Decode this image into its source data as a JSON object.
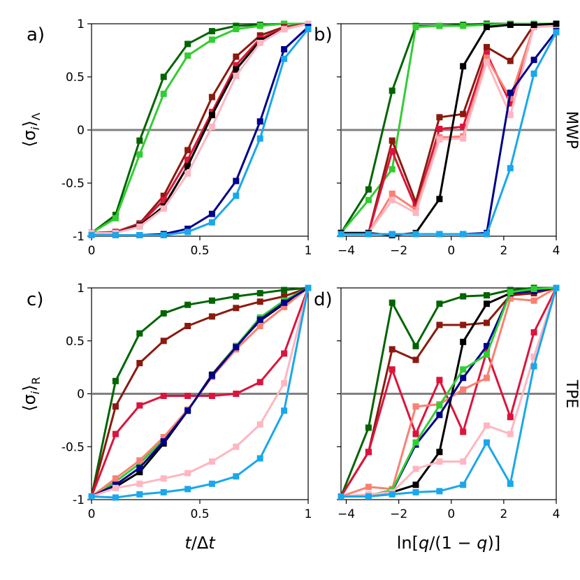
{
  "colors": {
    "dark_green": "#006400",
    "light_green": "#32cd32",
    "dark_red": "#8b1a0e",
    "crimson": "#dc143c",
    "salmon": "#fa8072",
    "pink": "#ffb6c1",
    "black": "#000000",
    "navy": "#00008b",
    "sky_blue": "#1aa7ec",
    "zero_line": "#808080"
  },
  "labels": {
    "panel_a": "a)",
    "panel_b": "b)",
    "panel_c": "c)",
    "panel_d": "d)",
    "ylabel_top": "⟨σᵢ⟩_Λ",
    "ylabel_top_main": "⟨σ",
    "ylabel_top_sub_i": "i",
    "ylabel_top_close": "⟩",
    "ylabel_top_sub": "Λ",
    "ylabel_bottom": "⟨σᵢ⟩_R",
    "ylabel_bottom_main": "⟨σ",
    "ylabel_bottom_sub_i": "i",
    "ylabel_bottom_close": "⟩",
    "ylabel_bottom_sub": "R",
    "xlabel_left": "t/Δt",
    "xlabel_left_t": "t",
    "xlabel_left_rest": "/Δ",
    "xlabel_left_t2": "t",
    "xlabel_right": "ln[q/(1 − q)]",
    "xlabel_right_a": "ln[",
    "xlabel_right_q1": "q",
    "xlabel_right_b": "/(1 − ",
    "xlabel_right_q2": "q",
    "xlabel_right_c": ")]",
    "row_top": "MWP",
    "row_bottom": "TPE"
  },
  "chart_data": [
    {
      "panel": "a",
      "type": "line",
      "xlim": [
        0,
        1
      ],
      "ylim": [
        -1,
        1
      ],
      "xticks": [
        0,
        0.5,
        1
      ],
      "xtick_labels": [
        "0",
        "0.5",
        "1"
      ],
      "yticks": [
        -1,
        -0.5,
        0,
        0.5,
        1
      ],
      "ytick_labels": [
        "-1",
        "-0.5",
        "0",
        "0.5",
        "1"
      ],
      "x": [
        0,
        0.111,
        0.222,
        0.333,
        0.444,
        0.556,
        0.667,
        0.778,
        0.889,
        1
      ],
      "series": [
        {
          "name": "dark_green",
          "color": "#006400",
          "values": [
            -0.97,
            -0.8,
            -0.1,
            0.5,
            0.81,
            0.93,
            0.98,
            0.99,
            1.0,
            1.0
          ]
        },
        {
          "name": "light_green",
          "color": "#32cd32",
          "values": [
            -0.97,
            -0.83,
            -0.23,
            0.34,
            0.7,
            0.85,
            0.95,
            0.98,
            1.0,
            1.0
          ]
        },
        {
          "name": "dark_red",
          "color": "#8b1a0e",
          "values": [
            -0.97,
            -0.96,
            -0.88,
            -0.62,
            -0.19,
            0.31,
            0.69,
            0.89,
            0.97,
            1.0
          ]
        },
        {
          "name": "crimson",
          "color": "#dc143c",
          "values": [
            -0.97,
            -0.96,
            -0.89,
            -0.66,
            -0.28,
            0.17,
            0.61,
            0.86,
            0.96,
            1.0
          ]
        },
        {
          "name": "black",
          "color": "#000000",
          "values": [
            -0.97,
            -0.97,
            -0.9,
            -0.72,
            -0.34,
            0.14,
            0.57,
            0.84,
            0.95,
            1.0
          ]
        },
        {
          "name": "pink",
          "color": "#ffb6c1",
          "values": [
            -0.97,
            -0.97,
            -0.91,
            -0.74,
            -0.41,
            0.03,
            0.51,
            0.82,
            0.95,
            1.0
          ]
        },
        {
          "name": "navy",
          "color": "#00008b",
          "values": [
            -0.99,
            -0.99,
            -0.99,
            -0.98,
            -0.93,
            -0.79,
            -0.48,
            0.08,
            0.76,
            0.97
          ]
        },
        {
          "name": "sky_blue",
          "color": "#1aa7ec",
          "values": [
            -0.99,
            -0.99,
            -0.99,
            -0.99,
            -0.96,
            -0.87,
            -0.62,
            -0.08,
            0.67,
            0.95
          ]
        }
      ]
    },
    {
      "panel": "b",
      "type": "line",
      "xlim": [
        -4.2,
        4.0
      ],
      "ylim": [
        -1,
        1
      ],
      "xticks": [
        -4,
        -2,
        0,
        2,
        4
      ],
      "xtick_labels": [
        "−4",
        "−2",
        "0",
        "2",
        "4"
      ],
      "yticks": [
        -1,
        -0.5,
        0,
        0.5,
        1
      ],
      "ytick_labels": [],
      "x": [
        -4.2,
        -3.15,
        -2.25,
        -1.35,
        -0.45,
        0.45,
        1.35,
        2.25,
        3.15,
        4.0
      ],
      "series": [
        {
          "name": "dark_green",
          "color": "#006400",
          "values": [
            -0.97,
            -0.56,
            0.37,
            0.98,
            0.98,
            0.99,
            1.0,
            1.0,
            1.0,
            1.0
          ]
        },
        {
          "name": "light_green",
          "color": "#32cd32",
          "values": [
            -0.97,
            -0.66,
            -0.37,
            0.97,
            0.98,
            0.98,
            0.99,
            1.0,
            1.0,
            1.0
          ]
        },
        {
          "name": "dark_red",
          "color": "#8b1a0e",
          "values": [
            -0.97,
            -0.97,
            -0.1,
            -0.68,
            0.12,
            0.15,
            0.78,
            0.65,
            0.99,
            0.99
          ]
        },
        {
          "name": "crimson",
          "color": "#dc143c",
          "values": [
            -0.97,
            -0.97,
            -0.2,
            -0.73,
            0.01,
            0.03,
            0.72,
            0.25,
            0.97,
            0.98
          ]
        },
        {
          "name": "salmon",
          "color": "#fa8072",
          "values": [
            -0.97,
            -0.97,
            -0.6,
            -0.75,
            -0.07,
            -0.06,
            0.68,
            0.3,
            0.98,
            0.98
          ]
        },
        {
          "name": "pink",
          "color": "#ffb6c1",
          "values": [
            -0.97,
            -0.97,
            -0.66,
            -0.78,
            -0.09,
            -0.08,
            0.64,
            0.14,
            0.97,
            0.98
          ]
        },
        {
          "name": "black",
          "color": "#000000",
          "values": [
            -0.97,
            -0.97,
            -0.99,
            -0.97,
            -0.65,
            0.6,
            0.97,
            0.99,
            0.99,
            1.0
          ]
        },
        {
          "name": "navy",
          "color": "#00008b",
          "values": [
            -0.98,
            -0.98,
            -0.98,
            -0.98,
            -0.98,
            -0.98,
            -0.97,
            0.35,
            0.66,
            0.93
          ]
        },
        {
          "name": "sky_blue",
          "color": "#1aa7ec",
          "values": [
            -0.98,
            -0.98,
            -0.98,
            -0.98,
            -0.98,
            -0.98,
            -0.98,
            -0.36,
            0.53,
            0.92
          ]
        }
      ]
    },
    {
      "panel": "c",
      "type": "line",
      "xlim": [
        0,
        1
      ],
      "ylim": [
        -1,
        1
      ],
      "xticks": [
        0,
        0.5,
        1
      ],
      "xtick_labels": [
        "0",
        "0.5",
        "1"
      ],
      "yticks": [
        -1,
        -0.5,
        0,
        0.5,
        1
      ],
      "ytick_labels": [
        "-1",
        "-0.5",
        "0",
        "0.5",
        "1"
      ],
      "x": [
        0,
        0.111,
        0.222,
        0.333,
        0.444,
        0.556,
        0.667,
        0.778,
        0.889,
        1
      ],
      "series": [
        {
          "name": "dark_green",
          "color": "#006400",
          "values": [
            -0.97,
            0.12,
            0.57,
            0.76,
            0.84,
            0.88,
            0.92,
            0.95,
            0.98,
            1.0
          ]
        },
        {
          "name": "dark_red",
          "color": "#8b1a0e",
          "values": [
            -0.97,
            -0.12,
            0.29,
            0.5,
            0.64,
            0.73,
            0.81,
            0.87,
            0.92,
            1.0
          ]
        },
        {
          "name": "crimson",
          "color": "#dc143c",
          "values": [
            -0.97,
            -0.38,
            -0.11,
            -0.02,
            -0.02,
            -0.02,
            0.0,
            0.11,
            0.38,
            1.0
          ]
        },
        {
          "name": "black",
          "color": "#000000",
          "values": [
            -0.97,
            -0.88,
            -0.74,
            -0.47,
            -0.16,
            0.18,
            0.45,
            0.69,
            0.85,
            1.0
          ]
        },
        {
          "name": "light_green",
          "color": "#32cd32",
          "values": [
            -0.97,
            -0.83,
            -0.66,
            -0.43,
            -0.16,
            0.17,
            0.45,
            0.72,
            0.88,
            1.0
          ]
        },
        {
          "name": "salmon",
          "color": "#fa8072",
          "values": [
            -0.97,
            -0.8,
            -0.63,
            -0.41,
            -0.15,
            0.16,
            0.42,
            0.64,
            0.82,
            1.0
          ]
        },
        {
          "name": "navy",
          "color": "#00008b",
          "values": [
            -0.97,
            -0.86,
            -0.7,
            -0.45,
            -0.16,
            0.17,
            0.44,
            0.7,
            0.86,
            1.0
          ]
        },
        {
          "name": "pink",
          "color": "#ffb6c1",
          "values": [
            -0.97,
            -0.89,
            -0.85,
            -0.8,
            -0.75,
            -0.64,
            -0.5,
            -0.29,
            0.1,
            1.0
          ]
        },
        {
          "name": "sky_blue",
          "color": "#1aa7ec",
          "values": [
            -0.97,
            -0.98,
            -0.95,
            -0.93,
            -0.9,
            -0.85,
            -0.78,
            -0.61,
            -0.16,
            1.0
          ]
        }
      ]
    },
    {
      "panel": "d",
      "type": "line",
      "xlim": [
        -4.2,
        4.0
      ],
      "ylim": [
        -1,
        1
      ],
      "xticks": [
        -4,
        -2,
        0,
        2,
        4
      ],
      "xtick_labels": [
        "−4",
        "−2",
        "0",
        "2",
        "4"
      ],
      "yticks": [
        -1,
        -0.5,
        0,
        0.5,
        1
      ],
      "ytick_labels": [],
      "x": [
        -4.2,
        -3.15,
        -2.25,
        -1.35,
        -0.45,
        0.45,
        1.35,
        2.25,
        3.15,
        4.0
      ],
      "series": [
        {
          "name": "dark_green",
          "color": "#006400",
          "values": [
            -0.97,
            -0.32,
            0.86,
            0.45,
            0.85,
            0.92,
            0.93,
            0.98,
            1.0,
            1.0
          ]
        },
        {
          "name": "dark_red",
          "color": "#8b1a0e",
          "values": [
            -0.97,
            -0.55,
            0.42,
            0.32,
            0.65,
            0.65,
            0.67,
            0.93,
            0.95,
            1.0
          ]
        },
        {
          "name": "crimson",
          "color": "#dc143c",
          "values": [
            -0.97,
            -0.55,
            0.23,
            -0.38,
            0.13,
            -0.36,
            0.4,
            -0.22,
            0.58,
            1.0
          ]
        },
        {
          "name": "salmon",
          "color": "#fa8072",
          "values": [
            -0.97,
            -0.88,
            -0.9,
            -0.12,
            -0.1,
            0.04,
            0.15,
            0.9,
            0.88,
            1.0
          ]
        },
        {
          "name": "black",
          "color": "#000000",
          "values": [
            -0.97,
            -0.97,
            -0.93,
            -0.86,
            -0.55,
            0.49,
            0.85,
            0.95,
            0.97,
            1.0
          ]
        },
        {
          "name": "navy",
          "color": "#00008b",
          "values": [
            -0.97,
            -0.97,
            -0.92,
            -0.48,
            -0.2,
            0.15,
            0.45,
            0.95,
            0.97,
            1.0
          ]
        },
        {
          "name": "light_green",
          "color": "#32cd32",
          "values": [
            -0.97,
            -0.96,
            -0.91,
            -0.46,
            -0.11,
            0.23,
            0.37,
            0.96,
            0.99,
            1.0
          ]
        },
        {
          "name": "pink",
          "color": "#ffb6c1",
          "values": [
            -0.97,
            -0.95,
            -0.93,
            -0.71,
            -0.64,
            -0.64,
            -0.3,
            -0.38,
            0.35,
            1.0
          ]
        },
        {
          "name": "sky_blue",
          "color": "#1aa7ec",
          "values": [
            -0.97,
            -0.97,
            -0.95,
            -0.93,
            -0.92,
            -0.86,
            -0.46,
            -0.85,
            0.26,
            1.0
          ]
        }
      ]
    }
  ]
}
